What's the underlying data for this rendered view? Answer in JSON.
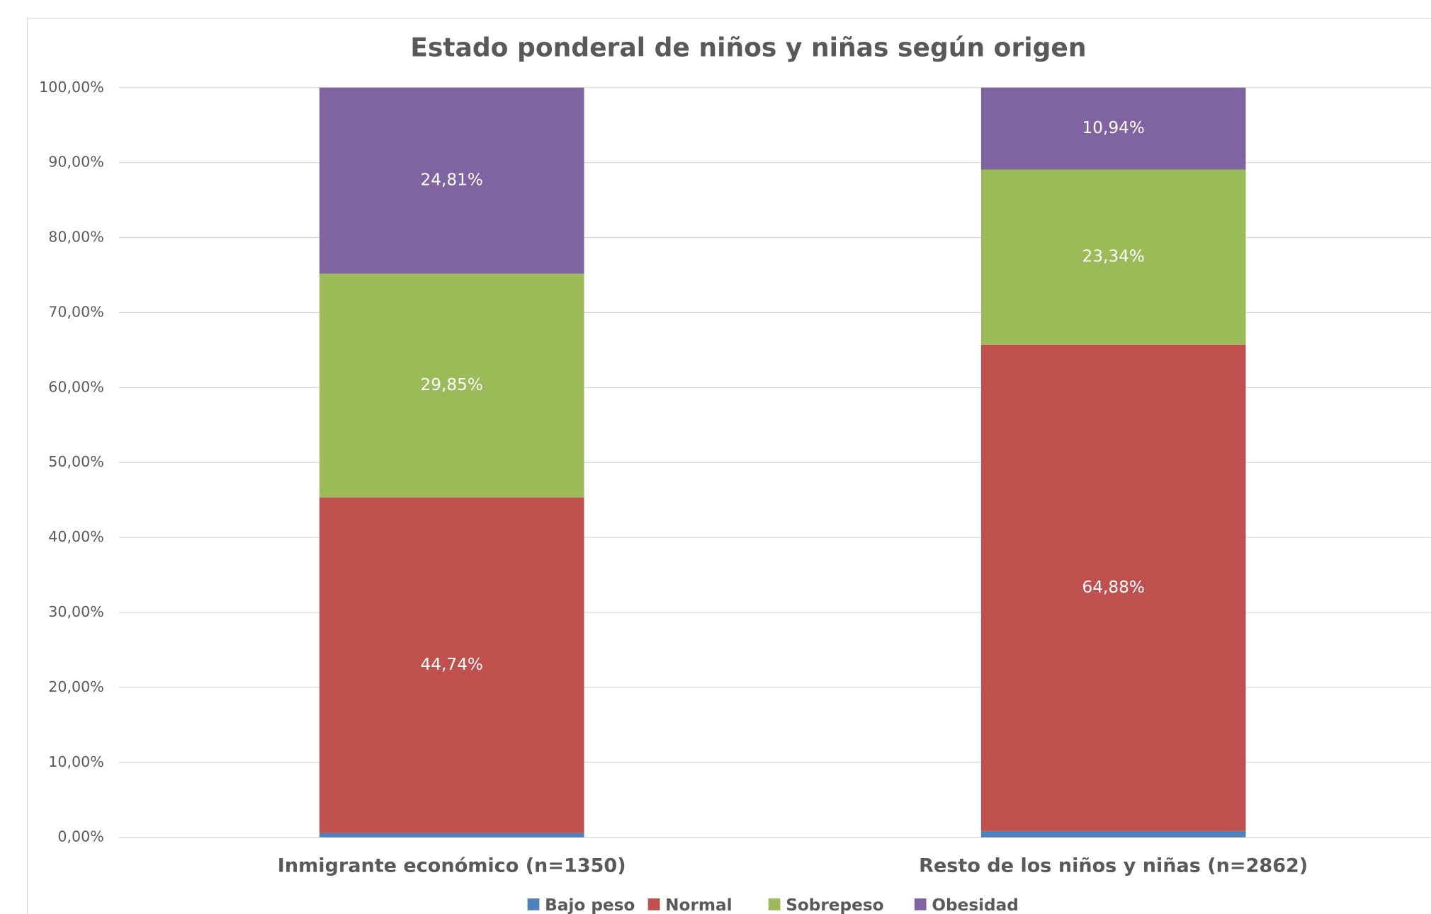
{
  "chart_data": {
    "type": "stacked_bar",
    "title": "Estado ponderal de niños y niñas según origen",
    "categories": [
      "Inmigrante económico (n=1350)",
      "Resto de los niños y niñas (n=2862)"
    ],
    "series": [
      {
        "name": "Bajo peso",
        "color": "#4f81bd",
        "values": [
          0.6,
          0.84
        ]
      },
      {
        "name": "Normal",
        "color": "#c0504d",
        "values": [
          44.74,
          64.88
        ],
        "value_labels": [
          "44,74%",
          "64,88%"
        ]
      },
      {
        "name": "Sobrepeso",
        "color": "#9bbb59",
        "values": [
          29.85,
          23.34
        ],
        "value_labels": [
          "29,85%",
          "23,34%"
        ]
      },
      {
        "name": "Obesidad",
        "color": "#8064a2",
        "values": [
          24.81,
          10.94
        ],
        "value_labels": [
          "24,81%",
          "10,94%"
        ]
      }
    ],
    "ylim": [
      0,
      100
    ],
    "yticks": [
      {
        "value": 0,
        "label": "0,00%"
      },
      {
        "value": 10,
        "label": "10,00%"
      },
      {
        "value": 20,
        "label": "20,00%"
      },
      {
        "value": 30,
        "label": "30,00%"
      },
      {
        "value": 40,
        "label": "40,00%"
      },
      {
        "value": 50,
        "label": "50,00%"
      },
      {
        "value": 60,
        "label": "60,00%"
      },
      {
        "value": 70,
        "label": "70,00%"
      },
      {
        "value": 80,
        "label": "80,00%"
      },
      {
        "value": 90,
        "label": "90,00%"
      },
      {
        "value": 100,
        "label": "100,00%"
      }
    ],
    "grid": true,
    "legend": "bottom"
  }
}
